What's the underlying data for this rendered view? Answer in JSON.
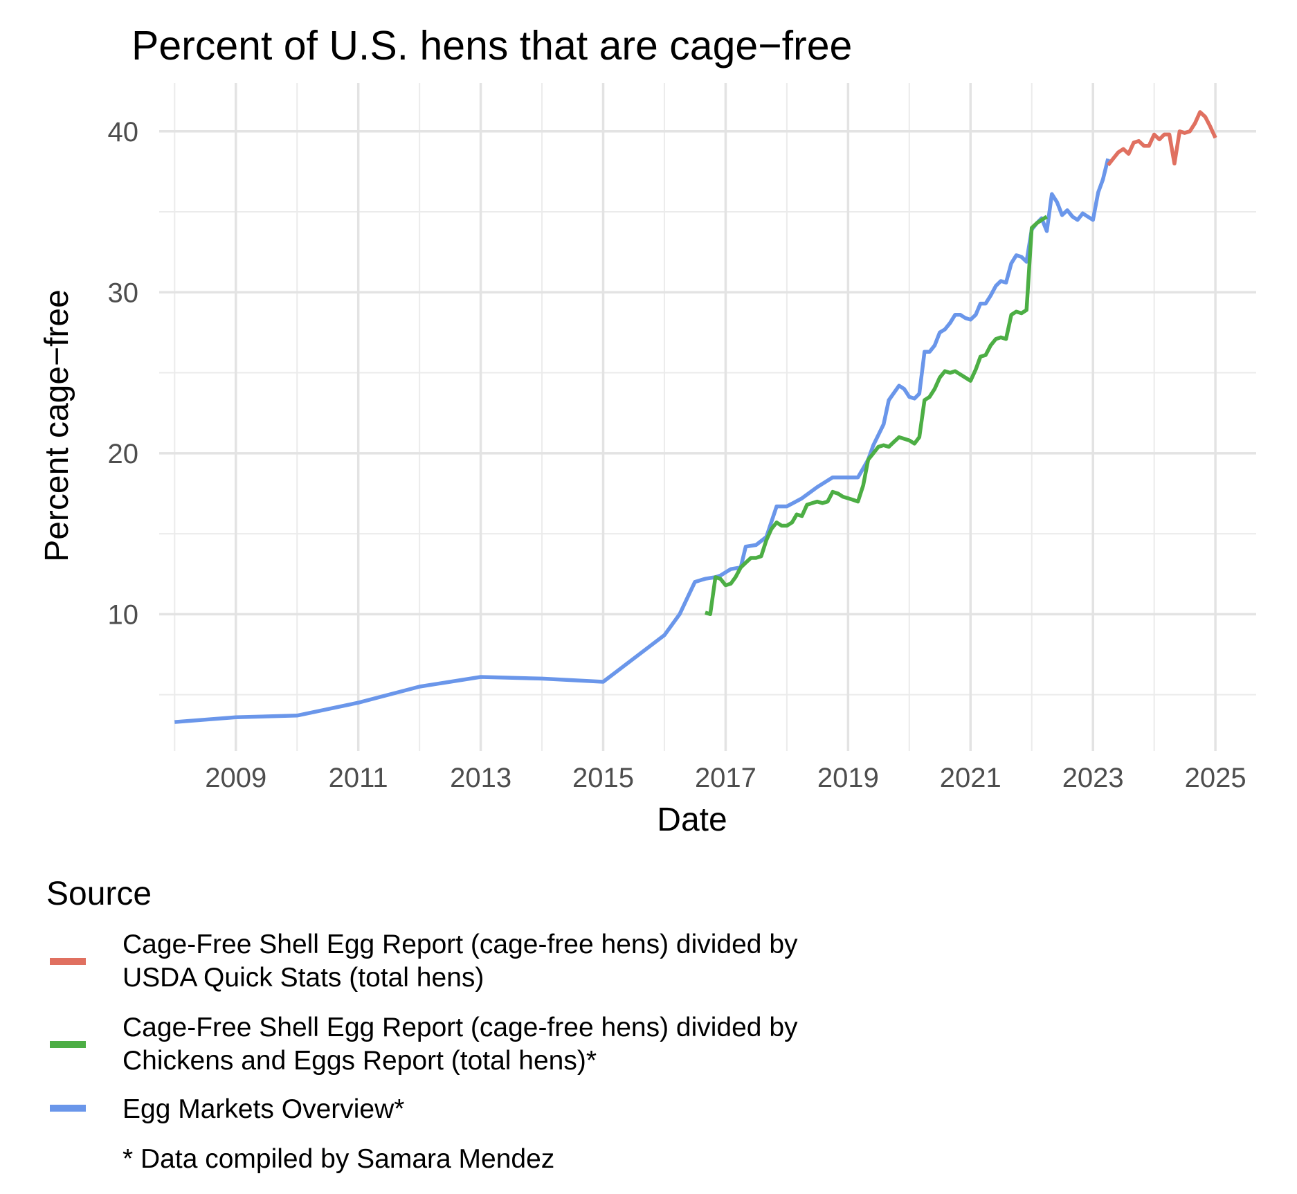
{
  "chart_data": {
    "type": "line",
    "title": "Percent of U.S. hens that are cage−free",
    "xlabel": "Date",
    "ylabel": "Percent cage−free",
    "x_type": "date",
    "xlim": [
      "2007-10-01",
      "2025-09-01"
    ],
    "ylim": [
      1.5,
      43
    ],
    "x_ticks": [
      {
        "label": "2009",
        "date": "2009-01-01"
      },
      {
        "label": "2011",
        "date": "2011-01-01"
      },
      {
        "label": "2013",
        "date": "2013-01-01"
      },
      {
        "label": "2015",
        "date": "2015-01-01"
      },
      {
        "label": "2017",
        "date": "2017-01-01"
      },
      {
        "label": "2019",
        "date": "2019-01-01"
      },
      {
        "label": "2021",
        "date": "2021-01-01"
      },
      {
        "label": "2023",
        "date": "2023-01-01"
      },
      {
        "label": "2025",
        "date": "2025-01-01"
      }
    ],
    "x_minor_gridlines": [
      "2008-01-01",
      "2010-01-01",
      "2012-01-01",
      "2014-01-01",
      "2016-01-01",
      "2018-01-01",
      "2020-01-01",
      "2022-01-01",
      "2024-01-01"
    ],
    "y_ticks": [
      10,
      20,
      30,
      40
    ],
    "y_minor_gridlines": [
      5,
      15,
      25,
      35
    ],
    "grid": true,
    "legend": {
      "title": "Source",
      "placement": "bottom-left",
      "note": "* Data compiled by Samara Mendez"
    },
    "series": [
      {
        "name": "Cage-Free Shell Egg Report (cage-free hens) divided by USDA Quick Stats (total hens)",
        "legend_lines": [
          "Cage-Free Shell Egg Report (cage-free hens) divided by",
          "USDA Quick Stats (total hens)"
        ],
        "color": "#e07060",
        "points": [
          [
            "2023-04-01",
            37.9
          ],
          [
            "2023-05-01",
            38.3
          ],
          [
            "2023-06-01",
            38.7
          ],
          [
            "2023-07-01",
            38.9
          ],
          [
            "2023-08-01",
            38.6
          ],
          [
            "2023-09-01",
            39.3
          ],
          [
            "2023-10-01",
            39.4
          ],
          [
            "2023-11-01",
            39.1
          ],
          [
            "2023-12-01",
            39.1
          ],
          [
            "2024-01-01",
            39.8
          ],
          [
            "2024-02-01",
            39.5
          ],
          [
            "2024-03-01",
            39.8
          ],
          [
            "2024-04-01",
            39.8
          ],
          [
            "2024-05-01",
            38.0
          ],
          [
            "2024-06-01",
            40.0
          ],
          [
            "2024-07-01",
            39.9
          ],
          [
            "2024-08-01",
            40.0
          ],
          [
            "2024-09-01",
            40.5
          ],
          [
            "2024-10-01",
            41.2
          ],
          [
            "2024-11-01",
            40.9
          ],
          [
            "2024-12-01",
            40.3
          ],
          [
            "2025-01-01",
            39.6
          ]
        ]
      },
      {
        "name": "Cage-Free Shell Egg Report (cage-free hens) divided by Chickens and Eggs Report (total hens)*",
        "legend_lines": [
          "Cage-Free Shell Egg Report (cage-free hens) divided by",
          "Chickens and Eggs Report (total hens)*"
        ],
        "color": "#4cae44",
        "points": [
          [
            "2016-09-01",
            10.1
          ],
          [
            "2016-10-01",
            10.0
          ],
          [
            "2016-11-01",
            12.3
          ],
          [
            "2016-12-01",
            12.2
          ],
          [
            "2017-01-01",
            11.8
          ],
          [
            "2017-02-01",
            11.9
          ],
          [
            "2017-03-01",
            12.3
          ],
          [
            "2017-04-01",
            12.9
          ],
          [
            "2017-05-01",
            13.2
          ],
          [
            "2017-06-01",
            13.5
          ],
          [
            "2017-07-01",
            13.5
          ],
          [
            "2017-08-01",
            13.6
          ],
          [
            "2017-09-01",
            14.6
          ],
          [
            "2017-10-01",
            15.3
          ],
          [
            "2017-11-01",
            15.7
          ],
          [
            "2017-12-01",
            15.5
          ],
          [
            "2018-01-01",
            15.5
          ],
          [
            "2018-02-01",
            15.7
          ],
          [
            "2018-03-01",
            16.2
          ],
          [
            "2018-04-01",
            16.1
          ],
          [
            "2018-05-01",
            16.8
          ],
          [
            "2018-06-01",
            16.9
          ],
          [
            "2018-07-01",
            17.0
          ],
          [
            "2018-08-01",
            16.9
          ],
          [
            "2018-09-01",
            17.0
          ],
          [
            "2018-10-01",
            17.6
          ],
          [
            "2018-11-01",
            17.5
          ],
          [
            "2018-12-01",
            17.3
          ],
          [
            "2019-01-01",
            17.2
          ],
          [
            "2019-02-01",
            17.1
          ],
          [
            "2019-03-01",
            17.0
          ],
          [
            "2019-04-01",
            18.0
          ],
          [
            "2019-05-01",
            19.6
          ],
          [
            "2019-06-01",
            20.0
          ],
          [
            "2019-07-01",
            20.4
          ],
          [
            "2019-08-01",
            20.5
          ],
          [
            "2019-09-01",
            20.4
          ],
          [
            "2019-10-01",
            20.7
          ],
          [
            "2019-11-01",
            21.0
          ],
          [
            "2019-12-01",
            20.9
          ],
          [
            "2020-01-01",
            20.8
          ],
          [
            "2020-02-01",
            20.6
          ],
          [
            "2020-03-01",
            21.0
          ],
          [
            "2020-04-01",
            23.3
          ],
          [
            "2020-05-01",
            23.5
          ],
          [
            "2020-06-01",
            24.0
          ],
          [
            "2020-07-01",
            24.7
          ],
          [
            "2020-08-01",
            25.1
          ],
          [
            "2020-09-01",
            25.0
          ],
          [
            "2020-10-01",
            25.1
          ],
          [
            "2020-11-01",
            24.9
          ],
          [
            "2020-12-01",
            24.7
          ],
          [
            "2021-01-01",
            24.5
          ],
          [
            "2021-02-01",
            25.2
          ],
          [
            "2021-03-01",
            26.0
          ],
          [
            "2021-04-01",
            26.1
          ],
          [
            "2021-05-01",
            26.7
          ],
          [
            "2021-06-01",
            27.1
          ],
          [
            "2021-07-01",
            27.2
          ],
          [
            "2021-08-01",
            27.1
          ],
          [
            "2021-09-01",
            28.6
          ],
          [
            "2021-10-01",
            28.8
          ],
          [
            "2021-11-01",
            28.7
          ],
          [
            "2021-12-01",
            28.9
          ],
          [
            "2022-01-01",
            34.0
          ],
          [
            "2022-02-01",
            34.3
          ],
          [
            "2022-03-01",
            34.5
          ],
          [
            "2022-04-01",
            34.7
          ]
        ]
      },
      {
        "name": "Egg Markets Overview*",
        "legend_lines": [
          "Egg Markets Overview*"
        ],
        "color": "#6a96ea",
        "points": [
          [
            "2008-01-01",
            3.3
          ],
          [
            "2009-01-01",
            3.6
          ],
          [
            "2010-01-01",
            3.7
          ],
          [
            "2011-01-01",
            4.5
          ],
          [
            "2012-01-01",
            5.5
          ],
          [
            "2013-01-01",
            6.1
          ],
          [
            "2014-01-01",
            6.0
          ],
          [
            "2015-01-01",
            5.8
          ],
          [
            "2016-01-01",
            8.7
          ],
          [
            "2016-04-01",
            10.0
          ],
          [
            "2016-07-01",
            12.0
          ],
          [
            "2016-09-01",
            12.2
          ],
          [
            "2016-11-01",
            12.3
          ],
          [
            "2016-12-01",
            12.4
          ],
          [
            "2017-02-01",
            12.8
          ],
          [
            "2017-04-01",
            12.9
          ],
          [
            "2017-05-01",
            14.2
          ],
          [
            "2017-07-01",
            14.3
          ],
          [
            "2017-09-01",
            14.8
          ],
          [
            "2017-11-01",
            16.7
          ],
          [
            "2018-01-01",
            16.7
          ],
          [
            "2018-04-01",
            17.2
          ],
          [
            "2018-07-01",
            17.9
          ],
          [
            "2018-10-01",
            18.5
          ],
          [
            "2019-01-01",
            18.5
          ],
          [
            "2019-03-01",
            18.5
          ],
          [
            "2019-05-01",
            19.6
          ],
          [
            "2019-06-01",
            20.5
          ],
          [
            "2019-08-01",
            21.8
          ],
          [
            "2019-09-01",
            23.3
          ],
          [
            "2019-11-01",
            24.2
          ],
          [
            "2019-12-01",
            24.0
          ],
          [
            "2020-01-01",
            23.5
          ],
          [
            "2020-02-01",
            23.4
          ],
          [
            "2020-03-01",
            23.7
          ],
          [
            "2020-04-01",
            26.3
          ],
          [
            "2020-05-01",
            26.3
          ],
          [
            "2020-06-01",
            26.7
          ],
          [
            "2020-07-01",
            27.5
          ],
          [
            "2020-08-01",
            27.7
          ],
          [
            "2020-09-01",
            28.1
          ],
          [
            "2020-10-01",
            28.6
          ],
          [
            "2020-11-01",
            28.6
          ],
          [
            "2020-12-01",
            28.4
          ],
          [
            "2021-01-01",
            28.3
          ],
          [
            "2021-02-01",
            28.6
          ],
          [
            "2021-03-01",
            29.3
          ],
          [
            "2021-04-01",
            29.3
          ],
          [
            "2021-05-01",
            29.8
          ],
          [
            "2021-06-01",
            30.4
          ],
          [
            "2021-07-01",
            30.7
          ],
          [
            "2021-08-01",
            30.6
          ],
          [
            "2021-09-01",
            31.8
          ],
          [
            "2021-10-01",
            32.3
          ],
          [
            "2021-11-01",
            32.2
          ],
          [
            "2021-12-01",
            31.9
          ],
          [
            "2022-01-01",
            33.9
          ],
          [
            "2022-02-01",
            34.3
          ],
          [
            "2022-03-01",
            34.6
          ],
          [
            "2022-04-01",
            33.8
          ],
          [
            "2022-05-01",
            36.1
          ],
          [
            "2022-06-01",
            35.6
          ],
          [
            "2022-07-01",
            34.8
          ],
          [
            "2022-08-01",
            35.1
          ],
          [
            "2022-09-01",
            34.7
          ],
          [
            "2022-10-01",
            34.5
          ],
          [
            "2022-11-01",
            34.9
          ],
          [
            "2022-12-01",
            34.7
          ],
          [
            "2023-01-01",
            34.5
          ],
          [
            "2023-02-01",
            36.2
          ],
          [
            "2023-03-01",
            37.0
          ],
          [
            "2023-04-01",
            38.3
          ]
        ]
      }
    ]
  }
}
